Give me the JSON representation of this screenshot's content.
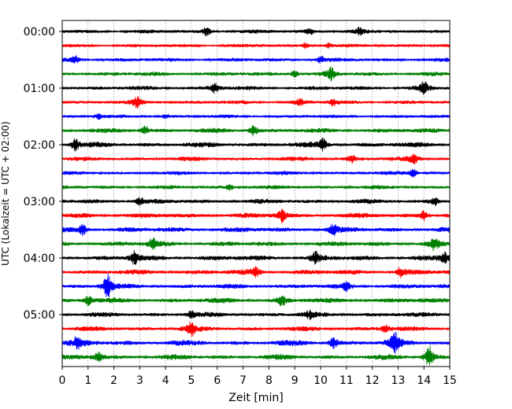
{
  "chart_data": {
    "type": "line",
    "title": "",
    "xlabel": "Zeit  [min]",
    "ylabel": "UTC (Lokalzeit = UTC + 02:00)",
    "xlim": [
      0,
      15
    ],
    "x_ticks": [
      0,
      1,
      2,
      3,
      4,
      5,
      6,
      7,
      8,
      9,
      10,
      11,
      12,
      13,
      14,
      15
    ],
    "x_tick_labels": [
      "0",
      "1",
      "2",
      "3",
      "4",
      "5",
      "6",
      "7",
      "8",
      "9",
      "10",
      "11",
      "12",
      "13",
      "14",
      "15"
    ],
    "y_tick_labels": [
      "00:00",
      "01:00",
      "02:00",
      "03:00",
      "04:00",
      "05:00"
    ],
    "grid": "vertical dotted at each minute",
    "trace_interval_minutes": 15,
    "trace_colors": [
      "#000000",
      "#ff0000",
      "#0000ff",
      "#008000"
    ],
    "traces": [
      {
        "start": "00:00",
        "color": "#000000",
        "amplitude": 0.45,
        "bursts": [
          {
            "t": 5.6,
            "a": 1.3
          },
          {
            "t": 9.6,
            "a": 0.9
          },
          {
            "t": 11.5,
            "a": 0.8
          }
        ]
      },
      {
        "start": "00:15",
        "color": "#ff0000",
        "amplitude": 0.4,
        "bursts": [
          {
            "t": 9.4,
            "a": 0.8
          },
          {
            "t": 10.3,
            "a": 0.7
          }
        ]
      },
      {
        "start": "00:30",
        "color": "#0000ff",
        "amplitude": 0.45,
        "bursts": [
          {
            "t": 0.5,
            "a": 1.2
          },
          {
            "t": 10.0,
            "a": 1.0
          }
        ]
      },
      {
        "start": "00:45",
        "color": "#008000",
        "amplitude": 0.5,
        "bursts": [
          {
            "t": 9.0,
            "a": 1.0
          },
          {
            "t": 10.4,
            "a": 1.5
          }
        ]
      },
      {
        "start": "01:00",
        "color": "#000000",
        "amplitude": 0.5,
        "bursts": [
          {
            "t": 5.9,
            "a": 1.1
          },
          {
            "t": 14.0,
            "a": 1.6
          }
        ]
      },
      {
        "start": "01:15",
        "color": "#ff0000",
        "amplitude": 0.45,
        "bursts": [
          {
            "t": 2.9,
            "a": 1.3
          },
          {
            "t": 9.2,
            "a": 0.9
          },
          {
            "t": 10.5,
            "a": 0.9
          }
        ]
      },
      {
        "start": "01:30",
        "color": "#0000ff",
        "amplitude": 0.4,
        "bursts": [
          {
            "t": 1.4,
            "a": 0.8
          },
          {
            "t": 4.0,
            "a": 0.7
          }
        ]
      },
      {
        "start": "01:45",
        "color": "#008000",
        "amplitude": 0.55,
        "bursts": [
          {
            "t": 3.2,
            "a": 1.0
          },
          {
            "t": 7.4,
            "a": 1.2
          }
        ]
      },
      {
        "start": "02:00",
        "color": "#000000",
        "amplitude": 0.6,
        "bursts": [
          {
            "t": 0.5,
            "a": 1.2
          },
          {
            "t": 10.1,
            "a": 1.2
          }
        ]
      },
      {
        "start": "02:15",
        "color": "#ff0000",
        "amplitude": 0.5,
        "bursts": [
          {
            "t": 11.2,
            "a": 0.9
          },
          {
            "t": 13.6,
            "a": 1.2
          }
        ]
      },
      {
        "start": "02:30",
        "color": "#0000ff",
        "amplitude": 0.45,
        "bursts": [
          {
            "t": 13.6,
            "a": 1.1
          }
        ]
      },
      {
        "start": "02:45",
        "color": "#008000",
        "amplitude": 0.45,
        "bursts": [
          {
            "t": 6.5,
            "a": 0.8
          }
        ]
      },
      {
        "start": "03:00",
        "color": "#000000",
        "amplitude": 0.55,
        "bursts": [
          {
            "t": 3.0,
            "a": 0.8
          },
          {
            "t": 14.4,
            "a": 1.0
          }
        ]
      },
      {
        "start": "03:15",
        "color": "#ff0000",
        "amplitude": 0.6,
        "bursts": [
          {
            "t": 8.5,
            "a": 1.4
          },
          {
            "t": 14.0,
            "a": 1.0
          }
        ]
      },
      {
        "start": "03:30",
        "color": "#0000ff",
        "amplitude": 0.6,
        "bursts": [
          {
            "t": 0.8,
            "a": 1.0
          },
          {
            "t": 10.5,
            "a": 1.2
          }
        ]
      },
      {
        "start": "03:45",
        "color": "#008000",
        "amplitude": 0.6,
        "bursts": [
          {
            "t": 3.5,
            "a": 1.1
          },
          {
            "t": 14.4,
            "a": 1.1
          }
        ]
      },
      {
        "start": "04:00",
        "color": "#000000",
        "amplitude": 0.6,
        "bursts": [
          {
            "t": 2.8,
            "a": 1.3
          },
          {
            "t": 9.8,
            "a": 1.2
          },
          {
            "t": 14.8,
            "a": 1.0
          }
        ]
      },
      {
        "start": "04:15",
        "color": "#ff0000",
        "amplitude": 0.6,
        "bursts": [
          {
            "t": 7.5,
            "a": 1.0
          },
          {
            "t": 13.1,
            "a": 1.0
          }
        ]
      },
      {
        "start": "04:30",
        "color": "#0000ff",
        "amplitude": 0.55,
        "bursts": [
          {
            "t": 1.75,
            "a": 3.0
          },
          {
            "t": 11.0,
            "a": 0.9
          }
        ]
      },
      {
        "start": "04:45",
        "color": "#008000",
        "amplitude": 0.6,
        "bursts": [
          {
            "t": 1.0,
            "a": 1.0
          },
          {
            "t": 8.5,
            "a": 1.1
          }
        ]
      },
      {
        "start": "05:00",
        "color": "#000000",
        "amplitude": 0.55,
        "bursts": [
          {
            "t": 5.0,
            "a": 0.8
          },
          {
            "t": 9.6,
            "a": 0.8
          }
        ]
      },
      {
        "start": "05:15",
        "color": "#ff0000",
        "amplitude": 0.55,
        "bursts": [
          {
            "t": 5.0,
            "a": 1.5
          },
          {
            "t": 12.5,
            "a": 0.8
          }
        ]
      },
      {
        "start": "05:30",
        "color": "#0000ff",
        "amplitude": 0.65,
        "bursts": [
          {
            "t": 0.6,
            "a": 1.1
          },
          {
            "t": 10.5,
            "a": 1.2
          },
          {
            "t": 12.85,
            "a": 2.3
          }
        ]
      },
      {
        "start": "05:45",
        "color": "#008000",
        "amplitude": 0.6,
        "bursts": [
          {
            "t": 1.4,
            "a": 0.9
          },
          {
            "t": 14.2,
            "a": 2.4
          }
        ]
      }
    ]
  }
}
